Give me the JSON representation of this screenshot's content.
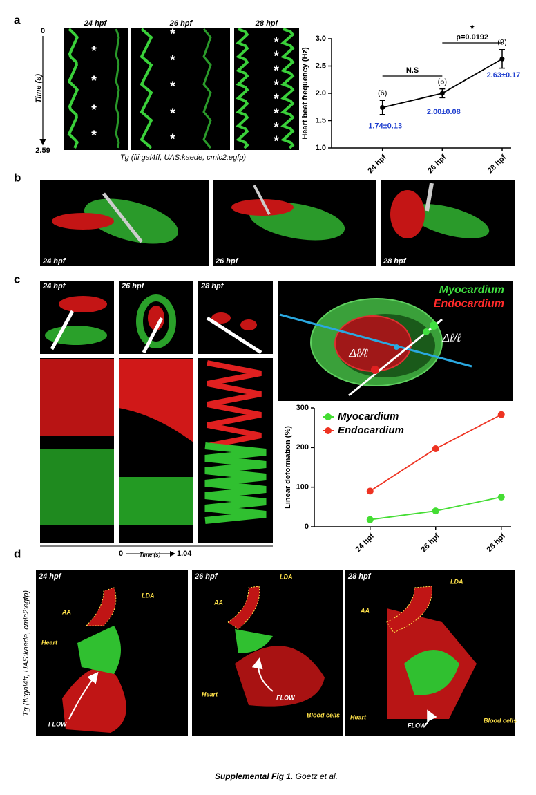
{
  "panel_letters": [
    "a",
    "b",
    "c",
    "d"
  ],
  "panel_a": {
    "stage_labels": [
      "24 hpf",
      "26 hpf",
      "28 hpf"
    ],
    "time_axis_label": "Time (s)",
    "time_start": 0,
    "time_end": 2.59,
    "beat_marker": "*",
    "caption": "Tg (fli:gal4ff, UAS:kaede, cmlc2:egfp)"
  },
  "panel_b": {
    "stage_labels": [
      "24 hpf",
      "26 hpf",
      "28 hpf"
    ]
  },
  "panel_c": {
    "stage_labels": [
      "24 hpf",
      "26 hpf",
      "28 hpf"
    ],
    "time_axis_label": "Time (s)",
    "time_start": 0,
    "time_end": 1.04,
    "diagram": {
      "outer": "Myocardium",
      "inner": "Endocardium",
      "strain": "Δℓ/ℓ"
    }
  },
  "panel_d": {
    "side_label": "Tg (fli:gal4ff, UAS:kaede, cmlc2:egfp)",
    "images": [
      {
        "stage": "24 hpf",
        "lda": "LDA",
        "aa": "AA",
        "heart": "Heart",
        "flow": "FLOW"
      },
      {
        "stage": "26 hpf",
        "lda": "LDA",
        "aa": "AA",
        "heart": "Heart",
        "flow": "FLOW",
        "blood": "Blood cells"
      },
      {
        "stage": "28 hpf",
        "lda": "LDA",
        "aa": "AA",
        "heart": "Heart",
        "flow": "FLOW",
        "blood": "Blood cells"
      }
    ]
  },
  "chart_data": [
    {
      "type": "line",
      "ylabel": "Heart beat frequency (Hz)",
      "categories": [
        "24 hpf",
        "26 hpf",
        "28 hpf"
      ],
      "values": [
        1.74,
        2.0,
        2.63
      ],
      "errors": [
        0.13,
        0.08,
        0.17
      ],
      "value_labels": [
        "1.74±0.13",
        "2.00±0.08",
        "2.63±0.17"
      ],
      "n_labels": [
        "(6)",
        "(5)",
        "(9)"
      ],
      "color": "#000000",
      "label_color": "#1f3fcf",
      "ylim": [
        1.0,
        3.0
      ],
      "yticks": [
        {
          "value": 1.0,
          "label": "1.0"
        },
        {
          "value": 1.5,
          "label": "1.5"
        },
        {
          "value": 2.0,
          "label": "2.0"
        },
        {
          "value": 2.5,
          "label": "2.5"
        },
        {
          "value": 3.0,
          "label": "3.0"
        }
      ],
      "annotations": [
        {
          "text": "N.S",
          "from": 0,
          "to": 1
        },
        {
          "text": "p=0.0192",
          "from": 1,
          "to": 2,
          "star": "*"
        }
      ]
    },
    {
      "type": "line",
      "ylabel": "Linear deformation (%)",
      "categories": [
        "24 hpf",
        "26 hpf",
        "28 hpf"
      ],
      "series": [
        {
          "name": "Myocardium",
          "color": "#44dd33",
          "values": [
            18,
            40,
            75
          ]
        },
        {
          "name": "Endocardium",
          "color": "#ee3322",
          "values": [
            90,
            197,
            283
          ]
        }
      ],
      "ylim": [
        0,
        300
      ],
      "yticks": [
        0,
        100,
        200,
        300
      ],
      "legend": "top-left"
    }
  ]
}
